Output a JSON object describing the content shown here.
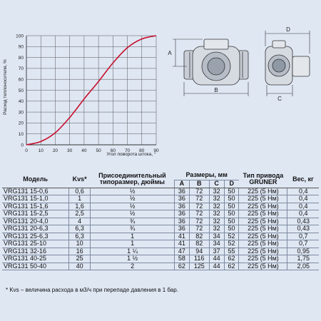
{
  "chart": {
    "ylabel": "Расход теплоносителя, %",
    "xlabel": "Угол поворота штока, °",
    "y_ticks": [
      "0",
      "10",
      "20",
      "30",
      "40",
      "50",
      "60",
      "70",
      "80",
      "90",
      "100"
    ],
    "x_ticks": [
      "0",
      "10",
      "20",
      "30",
      "40",
      "50",
      "60",
      "70",
      "80",
      "90"
    ],
    "curve_color": "#c8102e"
  },
  "chart_data": {
    "type": "line",
    "xlabel": "Угол поворота штока, °",
    "ylabel": "Расход теплоносителя, %",
    "xlim": [
      0,
      90
    ],
    "ylim": [
      0,
      100
    ],
    "grid": true,
    "series": [
      {
        "x": [
          0,
          10,
          20,
          30,
          40,
          45,
          50,
          60,
          70,
          80,
          90
        ],
        "values": [
          0,
          3,
          11,
          25,
          42,
          50,
          58,
          75,
          89,
          97,
          100
        ]
      }
    ]
  },
  "drawing": {
    "label_a": "A",
    "label_b": "B",
    "label_c": "C",
    "label_d": "D"
  },
  "table": {
    "headers": {
      "model": "Модель",
      "kvs": "Kvs*",
      "thread": "Присоединительный типоразмер, дюймы",
      "dims": "Размеры, мм",
      "a": "A",
      "b": "B",
      "c": "C",
      "d": "D",
      "drive": "Тип привода GRUNER",
      "weight": "Вес, кг"
    },
    "rows": [
      {
        "model": "VRG131 15-0,6",
        "kvs": "0,6",
        "thread": "½",
        "a": "36",
        "b": "72",
        "c": "32",
        "d": "50",
        "drive": "225 (5 Нм)",
        "weight": "0,4"
      },
      {
        "model": "VRG131 15-1,0",
        "kvs": "1",
        "thread": "½",
        "a": "36",
        "b": "72",
        "c": "32",
        "d": "50",
        "drive": "225 (5 Нм)",
        "weight": "0,4"
      },
      {
        "model": "VRG131 15-1,6",
        "kvs": "1,6",
        "thread": "½",
        "a": "36",
        "b": "72",
        "c": "32",
        "d": "50",
        "drive": "225 (5 Нм)",
        "weight": "0,4"
      },
      {
        "model": "VRG131 15-2,5",
        "kvs": "2,5",
        "thread": "½",
        "a": "36",
        "b": "72",
        "c": "32",
        "d": "50",
        "drive": "225 (5 Нм)",
        "weight": "0,4"
      },
      {
        "model": "VRG131 20-4,0",
        "kvs": "4",
        "thread": "¾",
        "a": "36",
        "b": "72",
        "c": "32",
        "d": "50",
        "drive": "225 (5 Нм)",
        "weight": "0,43"
      },
      {
        "model": "VRG131 20-6,3",
        "kvs": "6,3",
        "thread": "¾",
        "a": "36",
        "b": "72",
        "c": "32",
        "d": "50",
        "drive": "225 (5 Нм)",
        "weight": "0,43"
      },
      {
        "model": "VRG131 25-6,3",
        "kvs": "6,3",
        "thread": "1",
        "a": "41",
        "b": "82",
        "c": "34",
        "d": "52",
        "drive": "225 (5 Нм)",
        "weight": "0,7"
      },
      {
        "model": "VRG131 25-10",
        "kvs": "10",
        "thread": "1",
        "a": "41",
        "b": "82",
        "c": "34",
        "d": "52",
        "drive": "225 (5 Нм)",
        "weight": "0,7"
      },
      {
        "model": "VRG131 32-16",
        "kvs": "16",
        "thread": "1 ¼",
        "a": "47",
        "b": "94",
        "c": "37",
        "d": "55",
        "drive": "225 (5 Нм)",
        "weight": "0,95"
      },
      {
        "model": "VRG131 40-25",
        "kvs": "25",
        "thread": "1 ½",
        "a": "58",
        "b": "116",
        "c": "44",
        "d": "62",
        "drive": "225 (5 Нм)",
        "weight": "1,75"
      },
      {
        "model": "VRG131 50-40",
        "kvs": "40",
        "thread": "2",
        "a": "62",
        "b": "125",
        "c": "44",
        "d": "62",
        "drive": "225 (5 Нм)",
        "weight": "2,05"
      }
    ]
  },
  "footnote": "* Kvs – величина расхода в м3/ч при перепаде давления в 1 бар."
}
